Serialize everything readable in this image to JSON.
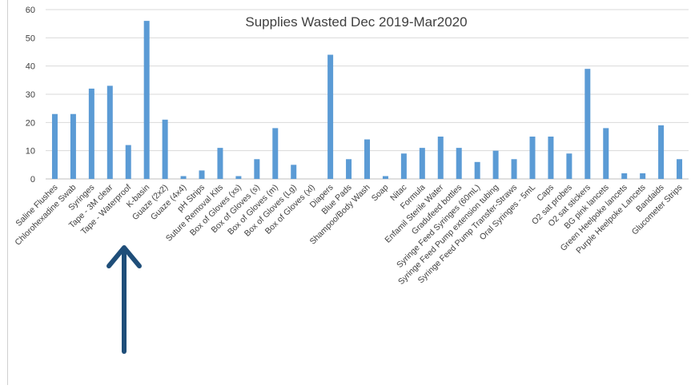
{
  "chart_data": {
    "type": "bar",
    "title": "Supplies Wasted Dec 2019-Mar2020",
    "xlabel": "",
    "ylabel": "",
    "ylim": [
      0,
      60
    ],
    "yticks": [
      0,
      10,
      20,
      30,
      40,
      50,
      60
    ],
    "grid": true,
    "legend": "none",
    "bar_color": "#5b9bd5",
    "categories": [
      "Saline Flushes",
      "Chlorohexadine Swab",
      "Syringes",
      "Tape - 3M clear",
      "Tape - Waterproof",
      "K-basin",
      "Guaze (2x2)",
      "Guaze (4x4)",
      "pH Strips",
      "Suture Removal Kits",
      "Box of Gloves (xs)",
      "Box of Gloves (s)",
      "Box of Gloves (m)",
      "Box of Gloves (Lg)",
      "Box of Gloves (xl)",
      "Diapers",
      "Blue Pads",
      "Shampoo/Body Wash",
      "Soap",
      "Nitac",
      "Formula",
      "Enfamil Sterile Water",
      "Gradufeed bottles",
      "Syringe Feed Syringes (60mL)",
      "Syringe Feed Pump extension tubing",
      "Syringe Feed Pump Transfer-Straws",
      "Oral Syringes - 5mL",
      "Caps",
      "O2 sat probes",
      "O2 sat stickers",
      "BG pink lancets",
      "Green Heelpoke lancets",
      "Purple Heelpoke Lancets",
      "Bandaids",
      "Glucometer Strips"
    ],
    "values": [
      23,
      23,
      32,
      33,
      12,
      56,
      21,
      1,
      3,
      11,
      1,
      7,
      18,
      5,
      0,
      44,
      7,
      14,
      1,
      9,
      11,
      15,
      11,
      6,
      10,
      7,
      15,
      15,
      9,
      39,
      18,
      2,
      2,
      19,
      7
    ]
  },
  "annotation": {
    "type": "arrow-up",
    "color": "#1f4e79"
  }
}
